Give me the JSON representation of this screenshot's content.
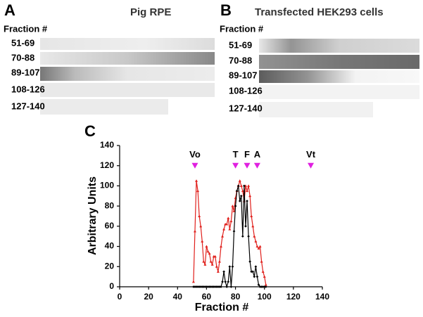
{
  "panels": {
    "A": {
      "label": "A",
      "title": "Pig RPE",
      "fraction_label": "Fraction #",
      "rows": [
        "51-69",
        "70-88",
        "89-107",
        "108-126",
        "127-140"
      ]
    },
    "B": {
      "label": "B",
      "title": "Transfected HEK293 cells",
      "fraction_label": "Fraction #",
      "rows": [
        "51-69",
        "70-88",
        "89-107",
        "108-126",
        "127-140"
      ]
    }
  },
  "chart_data": {
    "type": "line",
    "panel_label": "C",
    "xlabel": "Fraction #",
    "ylabel": "Arbitrary Units",
    "x": [
      51,
      52,
      53,
      54,
      55,
      56,
      57,
      58,
      59,
      60,
      61,
      62,
      63,
      64,
      65,
      66,
      67,
      68,
      69,
      70,
      71,
      72,
      73,
      74,
      75,
      76,
      77,
      78,
      79,
      80,
      81,
      82,
      83,
      84,
      85,
      86,
      87,
      88,
      89,
      90,
      91,
      92,
      93,
      94,
      95,
      96,
      97,
      98,
      99,
      100,
      101
    ],
    "series": [
      {
        "color": "#e0201c",
        "values": [
          5,
          55,
          105,
          95,
          70,
          60,
          45,
          25,
          22,
          40,
          35,
          33,
          25,
          22,
          30,
          30,
          20,
          15,
          25,
          40,
          50,
          57,
          62,
          62,
          68,
          57,
          65,
          80,
          75,
          88,
          95,
          100,
          105,
          100,
          95,
          85,
          100,
          95,
          100,
          90,
          70,
          60,
          50,
          45,
          40,
          38,
          40,
          25,
          15,
          10,
          2
        ]
      },
      {
        "color": "#000000",
        "values": [
          0,
          0,
          0,
          0,
          0,
          0,
          0,
          0,
          0,
          0,
          0,
          0,
          0,
          0,
          0,
          0,
          0,
          0,
          0,
          0,
          5,
          15,
          5,
          0,
          5,
          20,
          0,
          20,
          55,
          80,
          95,
          100,
          85,
          90,
          50,
          100,
          60,
          85,
          50,
          25,
          15,
          15,
          10,
          20,
          10,
          2,
          0,
          0,
          0,
          0,
          0
        ]
      }
    ],
    "annotations": [
      {
        "label": "Vo",
        "x": 52,
        "y": 120
      },
      {
        "label": "T",
        "x": 80,
        "y": 120
      },
      {
        "label": "F",
        "x": 88,
        "y": 120
      },
      {
        "label": "A",
        "x": 95,
        "y": 120
      },
      {
        "label": "Vt",
        "x": 132,
        "y": 120
      }
    ],
    "annotation_color": "#e020e0",
    "xlim": [
      0,
      140
    ],
    "ylim": [
      0,
      140
    ],
    "xticks": [
      0,
      20,
      40,
      60,
      80,
      100,
      120,
      140
    ],
    "yticks": [
      0,
      20,
      40,
      60,
      80,
      100,
      120,
      140
    ]
  }
}
